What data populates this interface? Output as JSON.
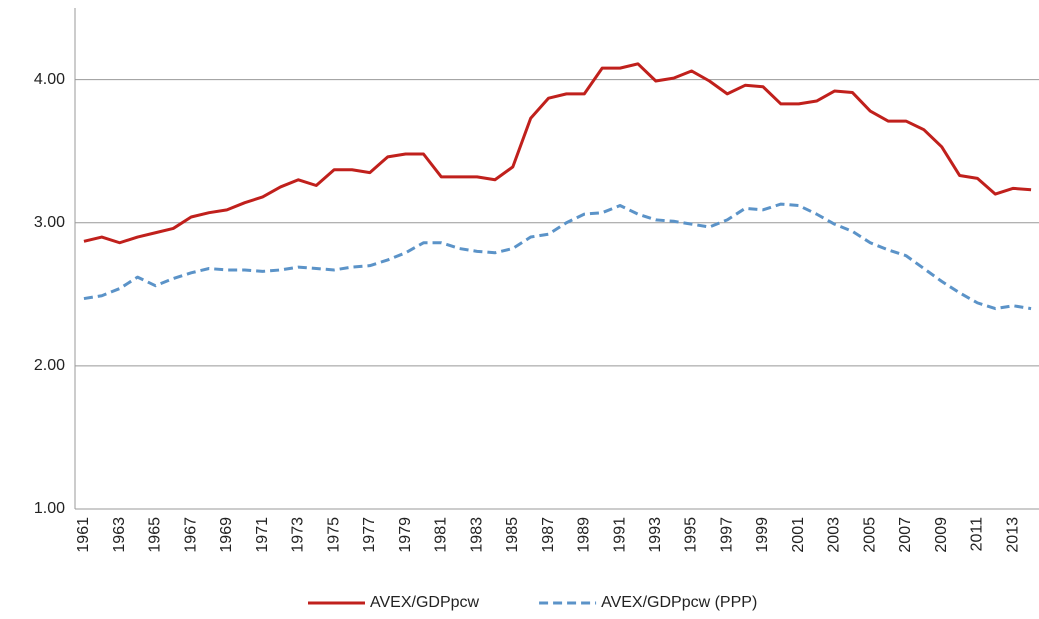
{
  "chart_data": {
    "type": "line",
    "categories": [
      "1961",
      null,
      "1963",
      null,
      "1965",
      null,
      "1967",
      null,
      "1969",
      null,
      "1971",
      null,
      "1973",
      null,
      "1975",
      null,
      "1977",
      null,
      "1979",
      null,
      "1981",
      null,
      "1983",
      null,
      "1985",
      null,
      "1987",
      null,
      "1989",
      null,
      "1991",
      null,
      "1993",
      null,
      "1995",
      null,
      "1997",
      null,
      "1999",
      null,
      "2001",
      null,
      "2003",
      null,
      "2005",
      null,
      "2007",
      null,
      "2009",
      null,
      "2011",
      null,
      "2013",
      null
    ],
    "series": [
      {
        "name": "AVEX/GDPpcw",
        "color": "#c0201c",
        "dashed": false,
        "values": [
          2.87,
          2.9,
          2.86,
          2.9,
          2.93,
          2.96,
          3.04,
          3.07,
          3.09,
          3.14,
          3.18,
          3.25,
          3.3,
          3.26,
          3.37,
          3.37,
          3.35,
          3.46,
          3.48,
          3.48,
          3.32,
          3.32,
          3.32,
          3.3,
          3.39,
          3.73,
          3.87,
          3.9,
          3.9,
          4.08,
          4.08,
          4.11,
          3.99,
          4.01,
          4.06,
          3.99,
          3.9,
          3.96,
          3.95,
          3.83,
          3.83,
          3.85,
          3.92,
          3.91,
          3.78,
          3.71,
          3.71,
          3.65,
          3.53,
          3.33,
          3.31,
          3.2,
          3.24,
          3.23
        ]
      },
      {
        "name": "AVEX/GDPpcw (PPP)",
        "color": "#5b93c8",
        "dashed": true,
        "values": [
          2.47,
          2.49,
          2.54,
          2.62,
          2.56,
          2.61,
          2.65,
          2.68,
          2.67,
          2.67,
          2.66,
          2.67,
          2.69,
          2.68,
          2.67,
          2.69,
          2.7,
          2.74,
          2.79,
          2.86,
          2.86,
          2.82,
          2.8,
          2.79,
          2.82,
          2.9,
          2.92,
          3.0,
          3.06,
          3.07,
          3.12,
          3.06,
          3.02,
          3.01,
          2.99,
          2.97,
          3.02,
          3.1,
          3.09,
          3.13,
          3.12,
          3.06,
          2.99,
          2.94,
          2.86,
          2.81,
          2.77,
          2.68,
          2.59,
          2.51,
          2.44,
          2.4,
          2.42,
          2.4
        ]
      }
    ],
    "ylim": [
      1,
      4.5
    ],
    "yticks": [
      {
        "value": 1,
        "label": "1.00"
      },
      {
        "value": 2,
        "label": "2.00"
      },
      {
        "value": 3,
        "label": "3.00"
      },
      {
        "value": 4,
        "label": "4.00"
      }
    ],
    "grid": true,
    "legend": "bottom"
  }
}
